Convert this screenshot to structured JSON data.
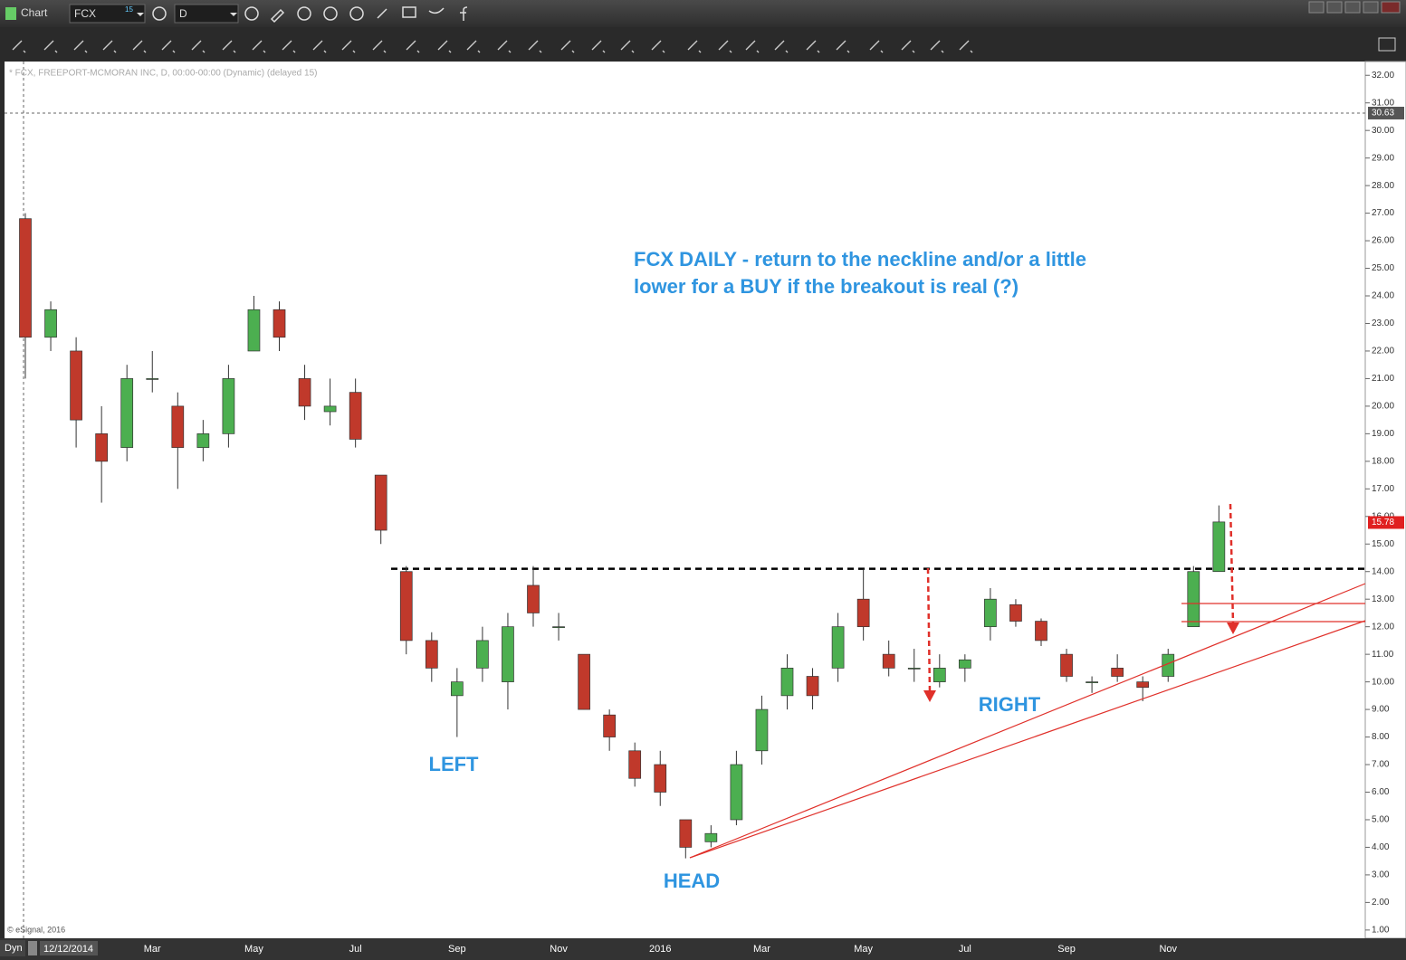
{
  "ui": {
    "app_title": "Chart",
    "symbol": "FCX",
    "symbol_badge": "15",
    "interval": "D",
    "mode": "Dyn",
    "cursor_date": "12/12/2014",
    "copyright": "© eSignal, 2016"
  },
  "chart_data": {
    "type": "candlestick",
    "subtitle": "* FCX, FREEPORT-MCMORAN INC, D, 00:00-00:00 (Dynamic) (delayed 15)",
    "annotation": [
      "FCX DAILY - return to the neckline and/or a little",
      "lower for a BUY if the breakout is real (?)"
    ],
    "pattern_labels": [
      "LEFT",
      "HEAD",
      "RIGHT"
    ],
    "categories": [
      null,
      null,
      null,
      null,
      null,
      "Mar",
      null,
      null,
      null,
      "May",
      null,
      null,
      null,
      "Jul",
      null,
      null,
      null,
      "Sep",
      null,
      null,
      null,
      "Nov",
      null,
      null,
      null,
      "2016",
      null,
      null,
      null,
      "Mar",
      null,
      null,
      null,
      "May",
      null,
      null,
      null,
      "Jul",
      null,
      null,
      null,
      "Sep",
      null,
      null,
      null,
      "Nov",
      null,
      null
    ],
    "open": [
      26.8,
      22.5,
      22,
      19,
      18.5,
      21,
      20,
      18.5,
      19,
      22,
      23.5,
      21,
      19.8,
      20.5,
      17.5,
      14,
      11.5,
      9.5,
      10.5,
      10,
      13.5,
      12,
      11,
      8.8,
      7.5,
      7,
      5,
      4.2,
      5,
      7.5,
      9.5,
      10.2,
      10.5,
      13,
      11,
      10.5,
      10,
      10.5,
      12,
      12.8,
      12.2,
      11,
      10,
      10.5,
      10,
      10.2,
      12,
      14
    ],
    "high": [
      27,
      23.8,
      22.5,
      20,
      21.5,
      22,
      20.5,
      19.5,
      21.5,
      24,
      23.8,
      21.5,
      21,
      21,
      17.5,
      14.2,
      11.8,
      10.5,
      12,
      12.5,
      14.2,
      12.5,
      11,
      9,
      7.8,
      7.5,
      5,
      4.8,
      7.5,
      9.5,
      11,
      10.5,
      12.5,
      14.1,
      11.5,
      11.2,
      11,
      11,
      13.4,
      13,
      12.3,
      11.2,
      10.2,
      11,
      10.2,
      11.2,
      14.2,
      16.4
    ],
    "low": [
      21,
      22,
      18.5,
      16.5,
      18,
      20.5,
      17,
      18,
      18.5,
      22,
      22,
      19.5,
      19.3,
      18.5,
      15,
      11,
      10,
      8,
      10,
      9,
      12,
      11.5,
      9,
      7.5,
      6.2,
      5.5,
      3.6,
      4,
      4.8,
      7,
      9,
      9,
      10,
      11.5,
      10.2,
      10,
      9.8,
      10,
      11.5,
      12,
      11.3,
      10,
      9.6,
      10,
      9.3,
      10,
      12,
      14
    ],
    "close": [
      22.5,
      23.5,
      19.5,
      18,
      21,
      21,
      18.5,
      19,
      21,
      23.5,
      22.5,
      20,
      20,
      18.8,
      15.5,
      11.5,
      10.5,
      10,
      11.5,
      12,
      12.5,
      12,
      9,
      8,
      6.5,
      6,
      4,
      4.5,
      7,
      9,
      10.5,
      9.5,
      12,
      12,
      10.5,
      10.5,
      10.5,
      10.8,
      13,
      12.2,
      11.5,
      10.2,
      10,
      10.2,
      9.8,
      11,
      14,
      15.8
    ],
    "up_color": "#4caf50",
    "down_color": "#c0392b",
    "neckline": 14.1,
    "cursor_price": 30.63,
    "last_price": 15.78,
    "ylim": [
      0.7,
      32.5
    ],
    "yticks": [
      {
        "value": 1,
        "label": "1.00"
      },
      {
        "value": 2,
        "label": "2.00"
      },
      {
        "value": 3,
        "label": "3.00"
      },
      {
        "value": 4,
        "label": "4.00"
      },
      {
        "value": 5,
        "label": "5.00"
      },
      {
        "value": 6,
        "label": "6.00"
      },
      {
        "value": 7,
        "label": "7.00"
      },
      {
        "value": 8,
        "label": "8.00"
      },
      {
        "value": 9,
        "label": "9.00"
      },
      {
        "value": 10,
        "label": "10.00"
      },
      {
        "value": 11,
        "label": "11.00"
      },
      {
        "value": 12,
        "label": "12.00"
      },
      {
        "value": 13,
        "label": "13.00"
      },
      {
        "value": 14,
        "label": "14.00"
      },
      {
        "value": 15,
        "label": "15.00"
      },
      {
        "value": 16,
        "label": "16.00"
      },
      {
        "value": 17,
        "label": "17.00"
      },
      {
        "value": 18,
        "label": "18.00"
      },
      {
        "value": 19,
        "label": "19.00"
      },
      {
        "value": 20,
        "label": "20.00"
      },
      {
        "value": 21,
        "label": "21.00"
      },
      {
        "value": 22,
        "label": "22.00"
      },
      {
        "value": 23,
        "label": "23.00"
      },
      {
        "value": 24,
        "label": "24.00"
      },
      {
        "value": 25,
        "label": "25.00"
      },
      {
        "value": 26,
        "label": "26.00"
      },
      {
        "value": 27,
        "label": "27.00"
      },
      {
        "value": 28,
        "label": "28.00"
      },
      {
        "value": 29,
        "label": "29.00"
      },
      {
        "value": 30,
        "label": "30.00"
      },
      {
        "value": 31,
        "label": "31.00"
      },
      {
        "value": 32,
        "label": "32.00"
      }
    ]
  }
}
